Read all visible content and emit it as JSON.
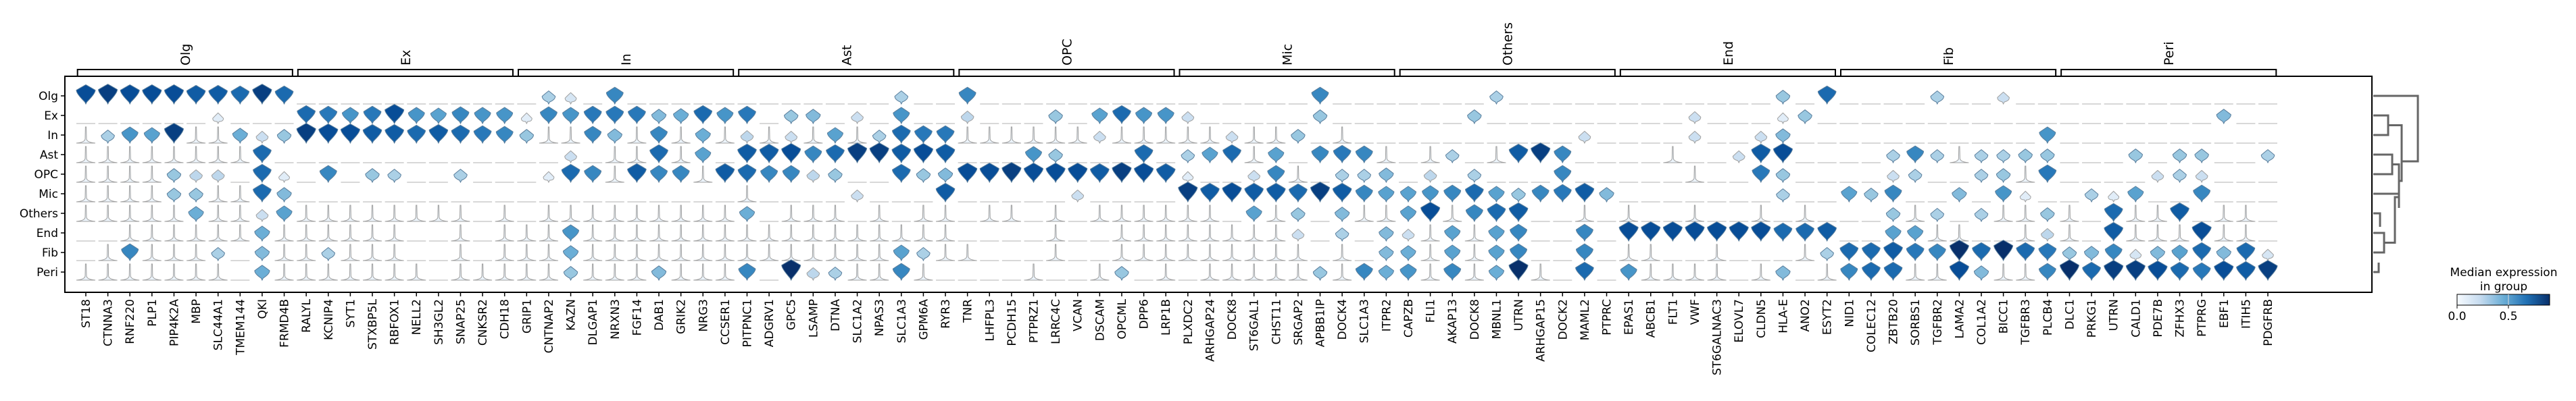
{
  "chart_data": {
    "type": "violin",
    "title": "",
    "rows": [
      "Olg",
      "Ex",
      "In",
      "Ast",
      "OPC",
      "Mic",
      "Others",
      "End",
      "Fib",
      "Peri"
    ],
    "groups": [
      {
        "label": "Olg",
        "genes": [
          "ST18",
          "CTNNA3",
          "RNF220",
          "PLP1",
          "PIP4K2A",
          "MBP",
          "SLC44A1",
          "TMEM144",
          "QKI",
          "FRMD4B"
        ]
      },
      {
        "label": "Ex",
        "genes": [
          "RALYL",
          "KCNIP4",
          "SYT1",
          "STXBP5L",
          "RBFOX1",
          "NELL2",
          "SH3GL2",
          "SNAP25",
          "CNKSR2",
          "CDH18"
        ]
      },
      {
        "label": "In",
        "genes": [
          "GRIP1",
          "CNTNAP2",
          "KAZN",
          "DLGAP1",
          "NRXN3",
          "FGF14",
          "DAB1",
          "GRIK2",
          "NRG3",
          "CCSER1"
        ]
      },
      {
        "label": "Ast",
        "genes": [
          "PITPNC1",
          "ADGRV1",
          "GPC5",
          "LSAMP",
          "DTNA",
          "SLC1A2",
          "NPAS3",
          "SLC1A3",
          "GPM6A",
          "RYR3"
        ]
      },
      {
        "label": "OPC",
        "genes": [
          "TNR",
          "LHFPL3",
          "PCDH15",
          "PTPRZ1",
          "LRRC4C",
          "VCAN",
          "DSCAM",
          "OPCML",
          "DPP6",
          "LRP1B"
        ]
      },
      {
        "label": "Mic",
        "genes": [
          "PLXDC2",
          "ARHGAP24",
          "DOCK8",
          "ST6GAL1",
          "CHST11",
          "SRGAP2",
          "APBB1IP",
          "DOCK4",
          "SLC1A3",
          "ITPR2"
        ]
      },
      {
        "label": "Others",
        "genes": [
          "CAPZB",
          "FLI1",
          "AKAP13",
          "DOCK8",
          "MBNL1",
          "UTRN",
          "ARHGAP15",
          "DOCK2",
          "MAML2",
          "PTPRC"
        ]
      },
      {
        "label": "End",
        "genes": [
          "EPAS1",
          "ABCB1",
          "FLT1",
          "VWF",
          "ST6GALNAC3",
          "ELOVL7",
          "CLDN5",
          "HLA-E",
          "ANO2",
          "ESYT2"
        ]
      },
      {
        "label": "Fib",
        "genes": [
          "NID1",
          "COLEC12",
          "ZBTB20",
          "SORBS1",
          "TGFBR2",
          "LAMA2",
          "COL1A2",
          "BICC1",
          "TGFBR3",
          "PLCB4"
        ]
      },
      {
        "label": "Peri",
        "genes": [
          "DLC1",
          "PRKG1",
          "UTRN",
          "CALD1",
          "PDE7B",
          "ZFHX3",
          "PTPRG",
          "EBF1",
          "ITIH5",
          "PDGFRB"
        ]
      }
    ],
    "median_expression": {
      "Olg": [
        0.8,
        0.85,
        0.8,
        0.8,
        0.8,
        0.75,
        0.75,
        0.7,
        0.85,
        0.7,
        0,
        0,
        0,
        0,
        0,
        0,
        0,
        0,
        0,
        0,
        0,
        0.3,
        0.15,
        0,
        0.6,
        0,
        0,
        0,
        0,
        0,
        0,
        0,
        0,
        0,
        0,
        0,
        0,
        0.3,
        0,
        0,
        0.6,
        0,
        0,
        0,
        0,
        0,
        0,
        0,
        0,
        0,
        0,
        0,
        0,
        0,
        0,
        0,
        0.6,
        0,
        0,
        0,
        0,
        0,
        0,
        0,
        0.3,
        0,
        0,
        0,
        0,
        0,
        0,
        0,
        0,
        0,
        0,
        0,
        0,
        0.35,
        0,
        0.7,
        0,
        0,
        0,
        0,
        0.3,
        0,
        0,
        0.2,
        0,
        0,
        0,
        0,
        0,
        0,
        0,
        0,
        0,
        0,
        0,
        0
      ],
      "Ex": [
        0,
        0,
        0,
        0,
        0,
        0,
        0.1,
        0,
        0,
        0,
        0.7,
        0.65,
        0.55,
        0.65,
        0.8,
        0.55,
        0.5,
        0.6,
        0.55,
        0.55,
        0.1,
        0.6,
        0.55,
        0.65,
        0.65,
        0.65,
        0.4,
        0.45,
        0.7,
        0.55,
        0.65,
        0,
        0.35,
        0.4,
        0,
        0.2,
        0,
        0.55,
        0,
        0,
        0.25,
        0,
        0,
        0,
        0.35,
        0,
        0.5,
        0.7,
        0.55,
        0.55,
        0.2,
        0,
        0,
        0,
        0,
        0,
        0.35,
        0,
        0,
        0,
        0,
        0,
        0,
        0.35,
        0,
        0,
        0,
        0,
        0,
        0,
        0,
        0,
        0,
        0.2,
        0,
        0,
        0,
        0.1,
        0.35,
        0,
        0,
        0,
        0,
        0,
        0,
        0,
        0,
        0,
        0,
        0,
        0,
        0,
        0,
        0,
        0,
        0,
        0,
        0.4,
        0,
        0
      ],
      "In": [
        0.05,
        0.3,
        0.55,
        0.5,
        0.85,
        0.05,
        0.05,
        0.45,
        0.2,
        0.35,
        0.85,
        0.8,
        0.8,
        0.75,
        0.75,
        0.7,
        0.75,
        0.7,
        0.65,
        0.6,
        0.35,
        0.05,
        0.05,
        0.6,
        0.4,
        0.05,
        0.6,
        0.05,
        0.45,
        0.05,
        0.25,
        0.05,
        0.2,
        0.05,
        0.5,
        0.05,
        0.3,
        0.7,
        0.65,
        0.65,
        0.05,
        0.05,
        0.05,
        0.05,
        0.05,
        0.05,
        0.2,
        0.05,
        0.05,
        0.05,
        0.05,
        0.05,
        0.2,
        0.05,
        0.05,
        0.35,
        0,
        0.05,
        0,
        0,
        0,
        0,
        0,
        0,
        0,
        0,
        0,
        0,
        0.2,
        0,
        0,
        0,
        0,
        0.2,
        0,
        0,
        0.2,
        0.4,
        0,
        0,
        0,
        0,
        0,
        0,
        0,
        0,
        0,
        0,
        0,
        0.55,
        0,
        0,
        0,
        0,
        0,
        0,
        0,
        0,
        0,
        0
      ],
      "Ast": [
        0.05,
        0.05,
        0.05,
        0.05,
        0.05,
        0.05,
        0.05,
        0.05,
        0.7,
        0,
        0,
        0,
        0,
        0,
        0,
        0,
        0,
        0,
        0,
        0,
        0,
        0,
        0.2,
        0,
        0.05,
        0.05,
        0.7,
        0.05,
        0.5,
        0,
        0.75,
        0.75,
        0.8,
        0.6,
        0.7,
        0.85,
        0.85,
        0.75,
        0.8,
        0.75,
        0,
        0,
        0,
        0.55,
        0.35,
        0,
        0,
        0,
        0.7,
        0,
        0.3,
        0.5,
        0.7,
        0.05,
        0.5,
        0,
        0.6,
        0.65,
        0.6,
        0.05,
        0,
        0.05,
        0.3,
        0,
        0.05,
        0.75,
        0.85,
        0.6,
        0,
        0,
        0,
        0,
        0.05,
        0,
        0,
        0.2,
        0.75,
        0.8,
        0,
        0,
        0,
        0,
        0.3,
        0.6,
        0.3,
        0.05,
        0.3,
        0.3,
        0.35,
        0.35,
        0,
        0,
        0,
        0.35,
        0,
        0.35,
        0.35,
        0,
        0,
        0.3
      ],
      "OPC": [
        0.05,
        0.05,
        0.05,
        0.05,
        0.35,
        0.25,
        0.25,
        0,
        0.7,
        0.1,
        0,
        0.6,
        0,
        0.35,
        0.3,
        0,
        0,
        0.3,
        0,
        0,
        0,
        0.1,
        0.7,
        0.6,
        0.05,
        0.75,
        0.6,
        0.6,
        0.05,
        0.75,
        0.7,
        0.6,
        0.6,
        0.25,
        0.35,
        0,
        0,
        0.7,
        0.35,
        0.4,
        0.8,
        0.8,
        0.85,
        0.8,
        0.8,
        0.8,
        0.75,
        0.85,
        0.8,
        0.75,
        0.1,
        0,
        0,
        0.2,
        0.6,
        0.05,
        0,
        0.3,
        0.3,
        0.4,
        0,
        0.25,
        0,
        0.3,
        0,
        0,
        0,
        0.6,
        0,
        0,
        0,
        0,
        0,
        0.05,
        0,
        0,
        0.65,
        0.35,
        0,
        0,
        0,
        0,
        0.2,
        0.3,
        0,
        0,
        0.3,
        0.35,
        0.05,
        0.65,
        0,
        0,
        0,
        0,
        0.2,
        0.3,
        0.2,
        0,
        0,
        0
      ],
      "Mic": [
        0.05,
        0.05,
        0.05,
        0.05,
        0.35,
        0.35,
        0.05,
        0.05,
        0.7,
        0.4,
        0,
        0,
        0,
        0,
        0,
        0,
        0,
        0,
        0,
        0,
        0,
        0,
        0,
        0,
        0,
        0,
        0,
        0,
        0,
        0,
        0.05,
        0,
        0,
        0,
        0,
        0.2,
        0,
        0,
        0,
        0.75,
        0,
        0,
        0,
        0,
        0,
        0.2,
        0,
        0,
        0,
        0,
        0.85,
        0.75,
        0.8,
        0.75,
        0.75,
        0.7,
        0.85,
        0.75,
        0.6,
        0.5,
        0.5,
        0.55,
        0.6,
        0.7,
        0.5,
        0.35,
        0.6,
        0.65,
        0.75,
        0.4,
        0,
        0,
        0,
        0,
        0,
        0,
        0,
        0.3,
        0,
        0,
        0.5,
        0.35,
        0.6,
        0,
        0,
        0.4,
        0,
        0.55,
        0.1,
        0,
        0,
        0.3,
        0.1,
        0.5,
        0,
        0,
        0.6,
        0,
        0,
        0
      ],
      "Others": [
        0.05,
        0.05,
        0.05,
        0.05,
        0.05,
        0.45,
        0.05,
        0.05,
        0.2,
        0.5,
        0.05,
        0.05,
        0.05,
        0.05,
        0.05,
        0.05,
        0.05,
        0.05,
        0,
        0.05,
        0,
        0.05,
        0.05,
        0.05,
        0.05,
        0.05,
        0.05,
        0.05,
        0.05,
        0.05,
        0.45,
        0,
        0.05,
        0.05,
        0.05,
        0,
        0.05,
        0,
        0.05,
        0.05,
        0,
        0.05,
        0.05,
        0,
        0.05,
        0,
        0.05,
        0.05,
        0.05,
        0.05,
        0.05,
        0.05,
        0,
        0.5,
        0.05,
        0.35,
        0,
        0.4,
        0.05,
        0.05,
        0.5,
        0.8,
        0.05,
        0.6,
        0.7,
        0.75,
        0,
        0,
        0.05,
        0,
        0.05,
        0,
        0,
        0.05,
        0,
        0,
        0.05,
        0,
        0.05,
        0,
        0,
        0,
        0.35,
        0.05,
        0.3,
        0,
        0.3,
        0.05,
        0.05,
        0.35,
        0.05,
        0,
        0.7,
        0.05,
        0.05,
        0.75,
        0,
        0.05,
        0.05,
        0
      ],
      "End": [
        0,
        0,
        0.05,
        0.05,
        0.05,
        0.05,
        0.05,
        0.05,
        0.45,
        0.05,
        0.05,
        0.05,
        0.05,
        0.05,
        0.05,
        0,
        0,
        0.05,
        0,
        0.05,
        0.05,
        0.05,
        0.55,
        0.05,
        0.05,
        0.05,
        0.05,
        0.05,
        0.05,
        0.05,
        0.05,
        0.05,
        0.05,
        0.05,
        0.05,
        0.05,
        0.05,
        0.05,
        0.05,
        0.05,
        0,
        0,
        0,
        0,
        0.05,
        0,
        0,
        0.05,
        0.05,
        0.05,
        0.05,
        0.05,
        0.05,
        0.05,
        0.05,
        0.2,
        0,
        0.3,
        0,
        0.4,
        0.2,
        0.05,
        0.5,
        0.05,
        0.5,
        0.6,
        0,
        0,
        0.6,
        0,
        0.8,
        0.8,
        0.8,
        0.8,
        0.8,
        0.8,
        0.8,
        0.7,
        0.7,
        0.75,
        0,
        0,
        0.5,
        0.5,
        0.05,
        0.05,
        0,
        0,
        0.05,
        0.25,
        0.05,
        0,
        0.75,
        0.05,
        0.05,
        0.05,
        0.8,
        0.05,
        0.05,
        0
      ],
      "Fib": [
        0,
        0.05,
        0.6,
        0.05,
        0.05,
        0.05,
        0.3,
        0,
        0.4,
        0.05,
        0.05,
        0.3,
        0.05,
        0.05,
        0.05,
        0,
        0,
        0.05,
        0,
        0.05,
        0.05,
        0.05,
        0.45,
        0.05,
        0.05,
        0.05,
        0.05,
        0.05,
        0.05,
        0.05,
        0.05,
        0.05,
        0.05,
        0.05,
        0.05,
        0.05,
        0.05,
        0.5,
        0.3,
        0.05,
        0.05,
        0,
        0,
        0,
        0.05,
        0,
        0,
        0.05,
        0.05,
        0.05,
        0.05,
        0.05,
        0.05,
        0.05,
        0.05,
        0.05,
        0,
        0.05,
        0,
        0.4,
        0.45,
        0.05,
        0.5,
        0.05,
        0.5,
        0.6,
        0,
        0,
        0.6,
        0,
        0.05,
        0.05,
        0,
        0,
        0.05,
        0,
        0,
        0,
        0.05,
        0.3,
        0.7,
        0.7,
        0.75,
        0.65,
        0.6,
        0.9,
        0.7,
        0.9,
        0.7,
        0.65,
        0.35,
        0.4,
        0.6,
        0.15,
        0.4,
        0.5,
        0.7,
        0.4,
        0.7,
        0.15
      ],
      "Peri": [
        0.05,
        0.05,
        0.05,
        0.05,
        0.05,
        0.05,
        0.05,
        0,
        0.45,
        0.05,
        0.05,
        0.05,
        0.05,
        0.05,
        0.05,
        0.05,
        0,
        0.05,
        0.05,
        0.05,
        0.05,
        0.05,
        0.35,
        0.05,
        0.05,
        0.05,
        0.4,
        0.05,
        0.05,
        0.05,
        0.6,
        0,
        0.9,
        0.25,
        0.3,
        0.05,
        0.05,
        0.6,
        0.05,
        0,
        0,
        0,
        0,
        0.05,
        0,
        0,
        0.05,
        0.35,
        0,
        0.05,
        0,
        0.05,
        0.05,
        0.05,
        0.05,
        0.05,
        0.35,
        0.05,
        0.6,
        0.45,
        0.55,
        0.05,
        0.6,
        0.05,
        0.45,
        0.9,
        0.05,
        0,
        0.7,
        0,
        0.55,
        0.05,
        0.05,
        0.05,
        0.05,
        0,
        0.05,
        0.4,
        0,
        0.05,
        0.6,
        0.7,
        0.7,
        0.05,
        0.05,
        0.8,
        0.4,
        0.05,
        0.05,
        0.6,
        0.9,
        0.7,
        0.85,
        0.85,
        0.8,
        0.7,
        0.65,
        0.8,
        0.75,
        0.85
      ]
    },
    "colorbar": {
      "title_line1": "Median expression",
      "title_line2": "in group",
      "ticks": [
        "0.0",
        "0.5"
      ],
      "range": [
        0,
        0.9
      ],
      "colormap": "Blues"
    },
    "dendrogram_order": [
      "Olg",
      "Ex",
      "In",
      "Ast",
      "OPC",
      "Mic",
      "Others",
      "End",
      "Fib",
      "Peri"
    ],
    "dendrogram": "right",
    "grid": false,
    "colors": {
      "low": "#f7fbff",
      "mid": "#6baed6",
      "high": "#08306b",
      "outline": "#808080",
      "bracket": "#000000",
      "dendrogram": "#666666"
    }
  }
}
